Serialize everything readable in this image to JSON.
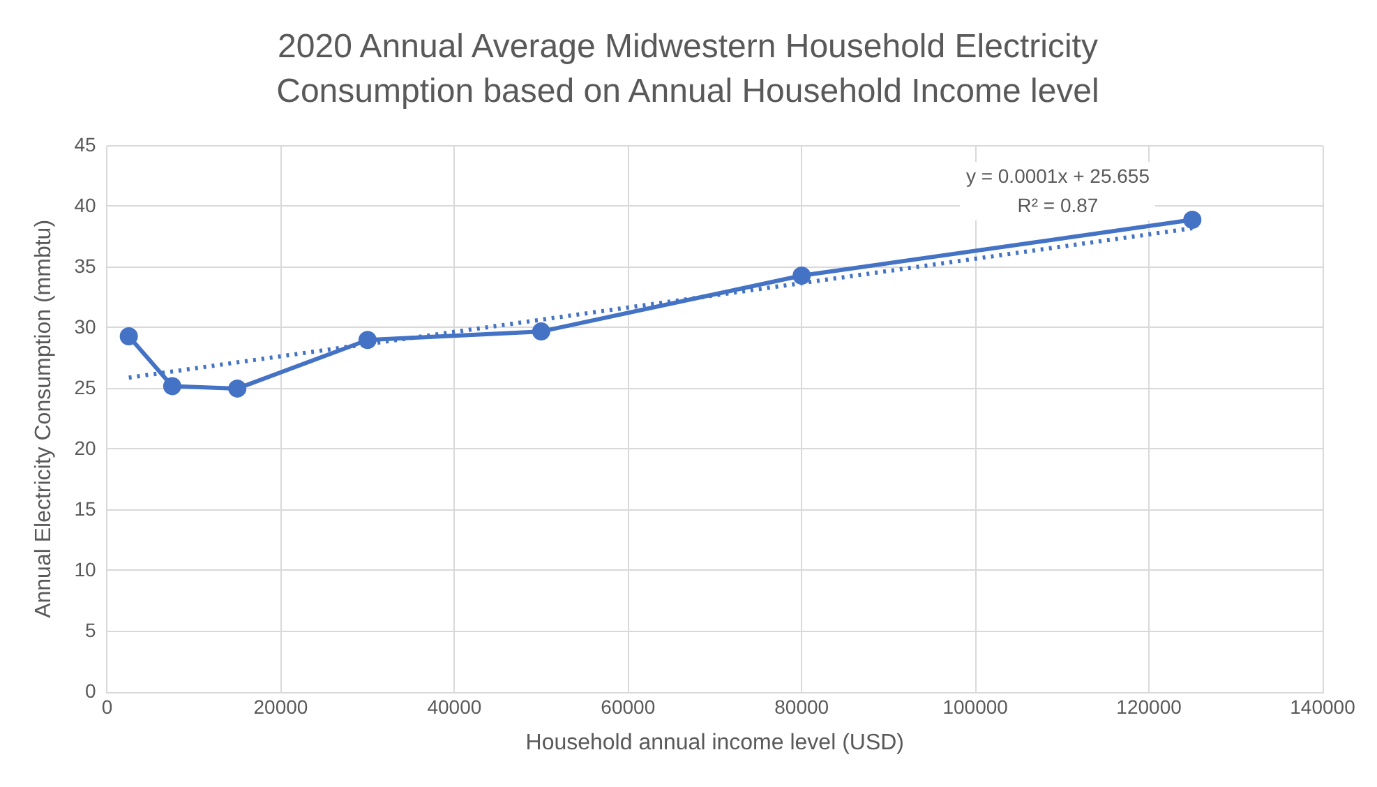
{
  "chart_data": {
    "type": "line",
    "title": "2020 Annual Average Midwestern Household Electricity Consumption based on Annual Household Income level",
    "xlabel": "Household annual income level (USD)",
    "ylabel": "Annual Electricity Consumption (mmbtu)",
    "series": [
      {
        "color": "#4472c4",
        "x": [
          2500,
          7500,
          15000,
          30000,
          50000,
          80000,
          125000
        ],
        "values": [
          29.3,
          25.2,
          25.0,
          29.0,
          29.7,
          34.3,
          38.9
        ],
        "marker": "circle",
        "line_style": "solid"
      },
      {
        "type": "line",
        "color": "#4472c4",
        "x": [
          2500,
          125000
        ],
        "values": [
          25.9,
          38.2
        ],
        "marker": "none",
        "line_style": "dotted"
      }
    ],
    "annotations": [
      "y = 0.0001x + 25.655",
      "R² = 0.87"
    ],
    "xlim": [
      0,
      140000
    ],
    "xticks": [
      0,
      20000,
      40000,
      60000,
      80000,
      100000,
      120000,
      140000
    ],
    "ylim": [
      0,
      45
    ],
    "yticks": [
      0,
      5,
      10,
      15,
      20,
      25,
      30,
      35,
      40,
      45
    ],
    "grid": true,
    "legend": false
  }
}
